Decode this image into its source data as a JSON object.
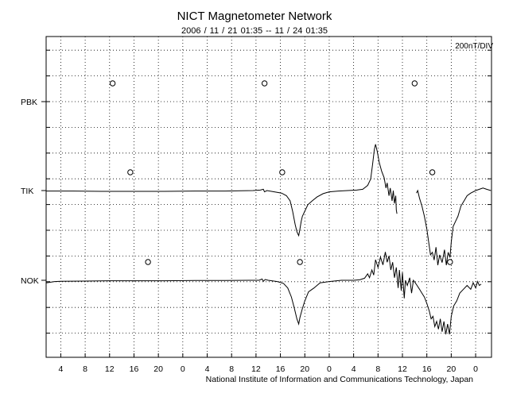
{
  "chart_data": {
    "type": "line",
    "title": "NICT Magnetometer Network",
    "subtitle": "2006 / 11 / 21   01:35 -- 11 / 24   01:35",
    "scale_label": "200nT/DIV",
    "footer": "National Institute of Information and Communications Technology, Japan",
    "x_tick_labels": [
      "4",
      "8",
      "12",
      "16",
      "20",
      "0",
      "4",
      "8",
      "12",
      "16",
      "20",
      "0",
      "4",
      "8",
      "12",
      "16",
      "20",
      "0"
    ],
    "x_tick_hours": [
      28,
      32,
      36,
      40,
      44,
      48,
      52,
      56,
      60,
      64,
      68,
      72,
      76,
      80,
      84,
      88,
      92,
      96
    ],
    "xlim_hours": [
      25.6,
      98.6
    ],
    "grid": true,
    "series": [
      {
        "name": "PBK",
        "baseline_div": 0,
        "local_midnight_marker_hours": [
          36.5,
          61.4,
          86.0
        ],
        "points": []
      },
      {
        "name": "TIK",
        "baseline_div": 0,
        "local_midnight_marker_hours": [
          39.4,
          64.3,
          88.9
        ],
        "points": [
          [
            25.6,
            -0.02
          ],
          [
            30,
            -0.02
          ],
          [
            35,
            -0.03
          ],
          [
            40,
            -0.03
          ],
          [
            45,
            -0.03
          ],
          [
            50,
            -0.02
          ],
          [
            55,
            -0.02
          ],
          [
            57.5,
            -0.01
          ],
          [
            59.5,
            0.0
          ],
          [
            60.7,
            0.02
          ],
          [
            61.2,
            0.05
          ],
          [
            61.4,
            -0.05
          ],
          [
            61.8,
            0.0
          ],
          [
            63,
            -0.05
          ],
          [
            64.2,
            -0.1
          ],
          [
            65,
            -0.2
          ],
          [
            65.6,
            -0.4
          ],
          [
            66,
            -0.8
          ],
          [
            66.4,
            -1.3
          ],
          [
            66.7,
            -1.6
          ],
          [
            66.9,
            -1.7
          ],
          [
            67.0,
            -1.75
          ],
          [
            67.2,
            -1.5
          ],
          [
            67.4,
            -1.2
          ],
          [
            67.6,
            -1.0
          ],
          [
            68,
            -0.8
          ],
          [
            68.5,
            -0.55
          ],
          [
            69.2,
            -0.4
          ],
          [
            70,
            -0.25
          ],
          [
            71,
            -0.12
          ],
          [
            72,
            -0.05
          ],
          [
            73.5,
            -0.02
          ],
          [
            75,
            0.0
          ],
          [
            76.5,
            0.02
          ],
          [
            77.5,
            0.05
          ],
          [
            78.3,
            0.2
          ],
          [
            78.8,
            0.45
          ],
          [
            79.1,
            1.0
          ],
          [
            79.4,
            1.6
          ],
          [
            79.6,
            1.8
          ],
          [
            79.9,
            1.5
          ],
          [
            80.2,
            1.1
          ],
          [
            80.6,
            0.75
          ],
          [
            81.0,
            0.5
          ],
          [
            81.3,
            0.1
          ],
          [
            81.5,
            0.3
          ],
          [
            81.8,
            -0.2
          ],
          [
            82.0,
            0.1
          ],
          [
            82.3,
            -0.4
          ],
          [
            82.5,
            0.0
          ],
          [
            82.7,
            -0.5
          ],
          [
            82.9,
            -0.2
          ],
          [
            83.0,
            -0.75
          ],
          [
            83.1,
            -0.9
          ]
        ],
        "segment2": [
          [
            86.3,
            -0.1
          ],
          [
            86.5,
            0.0
          ],
          [
            86.8,
            -0.3
          ],
          [
            87.2,
            -0.6
          ],
          [
            87.6,
            -1.0
          ],
          [
            88.0,
            -1.5
          ],
          [
            88.3,
            -2.0
          ],
          [
            88.6,
            -2.5
          ],
          [
            88.9,
            -2.4
          ],
          [
            89.2,
            -2.7
          ],
          [
            89.5,
            -2.2
          ],
          [
            89.8,
            -2.9
          ],
          [
            90.1,
            -2.5
          ],
          [
            90.5,
            -2.8
          ],
          [
            90.9,
            -2.3
          ],
          [
            91.2,
            -2.9
          ],
          [
            91.5,
            -2.4
          ],
          [
            91.8,
            -2.6
          ],
          [
            92.0,
            -2.0
          ],
          [
            92.3,
            -1.4
          ],
          [
            92.7,
            -1.2
          ],
          [
            93.1,
            -1.0
          ],
          [
            93.6,
            -0.6
          ],
          [
            94.1,
            -0.4
          ],
          [
            94.6,
            -0.2
          ],
          [
            95.2,
            -0.1
          ],
          [
            96,
            0.0
          ],
          [
            96.6,
            0.05
          ],
          [
            97.2,
            0.1
          ],
          [
            97.8,
            0.05
          ],
          [
            98.5,
            0.0
          ]
        ]
      },
      {
        "name": "NOK",
        "baseline_div": 0,
        "local_midnight_marker_hours": [
          42.3,
          67.2,
          91.8
        ],
        "points": [
          [
            25.6,
            -0.1
          ],
          [
            27,
            -0.05
          ],
          [
            28,
            -0.04
          ],
          [
            32,
            -0.03
          ],
          [
            36,
            -0.02
          ],
          [
            40,
            -0.02
          ],
          [
            45,
            -0.02
          ],
          [
            50,
            -0.01
          ],
          [
            55,
            -0.01
          ],
          [
            59,
            0.0
          ],
          [
            60.5,
            0.0
          ],
          [
            61.0,
            0.05
          ],
          [
            61.2,
            -0.04
          ],
          [
            61.5,
            0.03
          ],
          [
            62,
            0.0
          ],
          [
            63.5,
            -0.05
          ],
          [
            64.5,
            -0.12
          ],
          [
            65.2,
            -0.3
          ],
          [
            65.8,
            -0.65
          ],
          [
            66.3,
            -1.1
          ],
          [
            66.7,
            -1.5
          ],
          [
            67.0,
            -1.7
          ],
          [
            67.2,
            -1.45
          ],
          [
            67.6,
            -1.1
          ],
          [
            68.0,
            -0.8
          ],
          [
            68.6,
            -0.45
          ],
          [
            69.5,
            -0.3
          ],
          [
            70.5,
            -0.1
          ],
          [
            72,
            -0.05
          ],
          [
            74,
            0.0
          ],
          [
            76,
            0.0
          ],
          [
            77,
            0.02
          ],
          [
            77.8,
            0.08
          ],
          [
            78.3,
            0.25
          ],
          [
            78.6,
            0.1
          ],
          [
            79.0,
            0.4
          ],
          [
            79.3,
            0.2
          ],
          [
            79.6,
            0.8
          ],
          [
            80.0,
            0.5
          ],
          [
            80.4,
            0.9
          ],
          [
            80.8,
            0.6
          ],
          [
            81.2,
            1.1
          ],
          [
            81.5,
            0.7
          ],
          [
            81.8,
            0.95
          ],
          [
            82.1,
            0.4
          ],
          [
            82.4,
            0.7
          ],
          [
            82.7,
            0.1
          ],
          [
            83.0,
            0.5
          ],
          [
            83.3,
            -0.3
          ],
          [
            83.5,
            0.4
          ],
          [
            83.8,
            -0.4
          ],
          [
            84.0,
            0.3
          ],
          [
            84.3,
            -0.7
          ],
          [
            84.5,
            0.0
          ],
          [
            84.8,
            -0.2
          ],
          [
            85.2,
            0.1
          ],
          [
            85.5,
            -0.5
          ],
          [
            85.8,
            0.0
          ],
          [
            86.1,
            -0.1
          ],
          [
            86.4,
            -0.2
          ],
          [
            86.8,
            -0.35
          ],
          [
            87.2,
            -0.5
          ],
          [
            87.6,
            -0.65
          ],
          [
            88.0,
            -0.9
          ],
          [
            88.4,
            -1.2
          ],
          [
            88.7,
            -1.5
          ],
          [
            89.0,
            -1.4
          ],
          [
            89.3,
            -1.8
          ],
          [
            89.6,
            -1.6
          ],
          [
            89.9,
            -1.9
          ],
          [
            90.2,
            -1.5
          ],
          [
            90.5,
            -2.0
          ],
          [
            90.8,
            -1.6
          ],
          [
            91.1,
            -2.1
          ],
          [
            91.4,
            -1.7
          ],
          [
            91.7,
            -2.1
          ],
          [
            92.0,
            -1.4
          ],
          [
            92.4,
            -1.0
          ],
          [
            92.9,
            -0.8
          ],
          [
            93.4,
            -0.5
          ],
          [
            94.0,
            -0.35
          ],
          [
            94.6,
            -0.2
          ],
          [
            95.2,
            -0.35
          ],
          [
            95.6,
            -0.1
          ],
          [
            96.0,
            -0.3
          ],
          [
            96.3,
            -0.05
          ],
          [
            96.6,
            -0.2
          ],
          [
            96.9,
            -0.15
          ]
        ]
      }
    ]
  }
}
